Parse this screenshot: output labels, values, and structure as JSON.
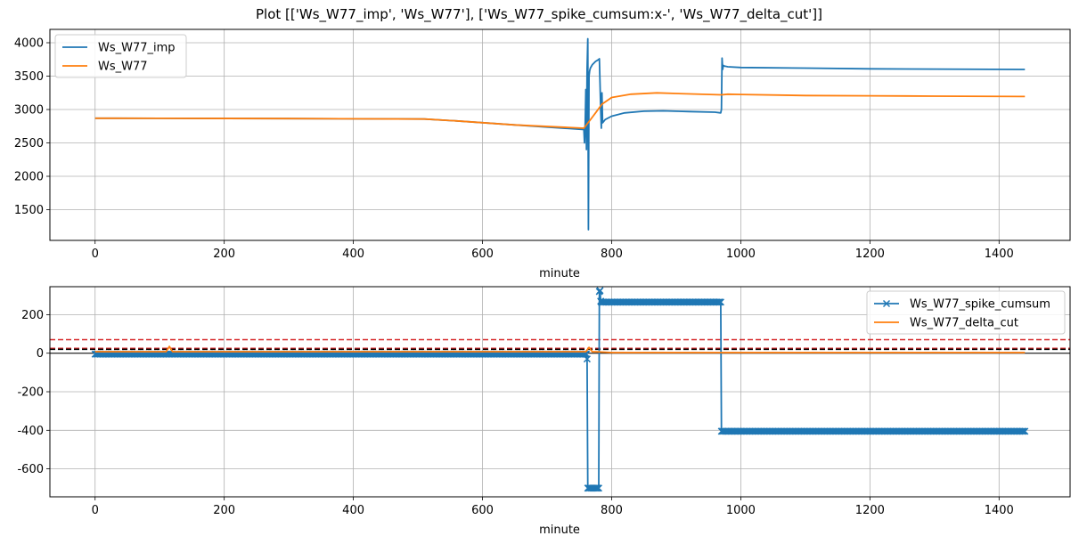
{
  "title": "Plot [['Ws_W77_imp', 'Ws_W77'], ['Ws_W77_spike_cumsum:x-', 'Ws_W77_delta_cut']]",
  "chart_data": [
    {
      "type": "line",
      "xlabel": "minute",
      "ylabel": "",
      "xlim": [
        -70,
        1510
      ],
      "ylim": [
        1040,
        4200
      ],
      "xticks": [
        0,
        200,
        400,
        600,
        800,
        1000,
        1200,
        1400
      ],
      "yticks": [
        1500,
        2000,
        2500,
        3000,
        3500,
        4000
      ],
      "grid": true,
      "legend_position": "top-left",
      "series": [
        {
          "name": "Ws_W77_imp",
          "color": "#1f77b4",
          "marker": "none",
          "x": [
            0,
            100,
            300,
            510,
            560,
            650,
            757,
            758,
            759,
            760,
            761,
            762,
            763,
            764,
            765,
            766,
            767,
            770,
            775,
            780,
            781,
            783,
            784,
            785,
            786,
            790,
            800,
            820,
            850,
            880,
            920,
            960,
            969,
            970,
            971,
            972,
            973,
            975,
            980,
            1000,
            1100,
            1200,
            1300,
            1440
          ],
          "y": [
            2870,
            2868,
            2864,
            2858,
            2830,
            2770,
            2700,
            2500,
            2800,
            3300,
            2400,
            3600,
            4060,
            1200,
            3500,
            3580,
            3620,
            3670,
            3720,
            3750,
            3760,
            3000,
            2720,
            3250,
            2800,
            2850,
            2900,
            2950,
            2975,
            2980,
            2970,
            2960,
            2950,
            3000,
            3770,
            3600,
            3660,
            3650,
            3640,
            3630,
            3620,
            3610,
            3605,
            3600
          ]
        },
        {
          "name": "Ws_W77",
          "color": "#ff7f0e",
          "marker": "none",
          "x": [
            0,
            100,
            300,
            510,
            560,
            650,
            757,
            765,
            775,
            785,
            800,
            830,
            870,
            900,
            970,
            980,
            1000,
            1100,
            1200,
            1300,
            1440
          ],
          "y": [
            2870,
            2868,
            2864,
            2858,
            2830,
            2770,
            2720,
            2820,
            2950,
            3080,
            3180,
            3230,
            3250,
            3240,
            3220,
            3230,
            3225,
            3210,
            3205,
            3200,
            3195
          ]
        }
      ]
    },
    {
      "type": "line",
      "xlabel": "minute",
      "ylabel": "",
      "xlim": [
        -70,
        1510
      ],
      "ylim": [
        -745,
        345
      ],
      "xticks": [
        0,
        200,
        400,
        600,
        800,
        1000,
        1200,
        1400
      ],
      "yticks": [
        -600,
        -400,
        -200,
        0,
        200
      ],
      "grid": true,
      "legend_position": "top-right",
      "hlines": [
        {
          "y": 70,
          "color": "#d62728",
          "style": "dashed"
        },
        {
          "y": 25,
          "color": "#d62728",
          "style": "dashed"
        },
        {
          "y": 20,
          "color": "#000000",
          "style": "dashed"
        },
        {
          "y": 0,
          "color": "#000000",
          "style": "solid"
        }
      ],
      "series": [
        {
          "name": "Ws_W77_spike_cumsum",
          "color": "#1f77b4",
          "marker": "x",
          "x": [
            0,
            760,
            761,
            762,
            763,
            764,
            770,
            775,
            780,
            781,
            782,
            783,
            784,
            790,
            800,
            900,
            969,
            970,
            971,
            1000,
            1100,
            1200,
            1300,
            1440
          ],
          "y": [
            -5,
            -5,
            -5,
            -30,
            -700,
            -700,
            -700,
            -700,
            -700,
            320,
            325,
            270,
            265,
            265,
            265,
            265,
            265,
            -405,
            -405,
            -405,
            -405,
            -405,
            -405,
            -405
          ]
        },
        {
          "name": "Ws_W77_delta_cut",
          "color": "#ff7f0e",
          "marker": "none",
          "x": [
            0,
            100,
            110,
            115,
            120,
            300,
            500,
            700,
            760,
            765,
            770,
            775,
            800,
            1000,
            1200,
            1440
          ],
          "y": [
            8,
            8,
            8,
            35,
            8,
            8,
            8,
            8,
            8,
            30,
            8,
            8,
            3,
            3,
            3,
            3
          ]
        }
      ]
    }
  ]
}
